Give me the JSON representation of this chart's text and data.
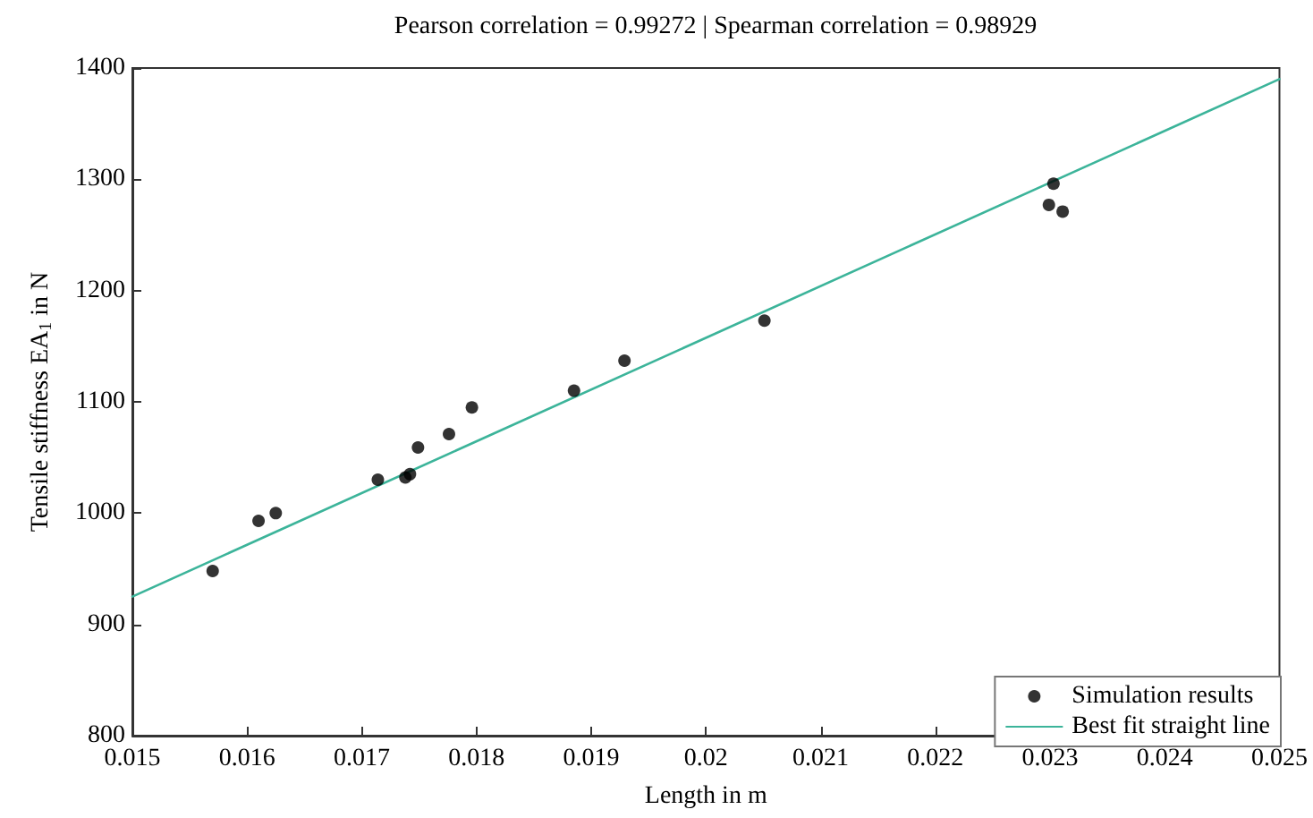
{
  "chart_data": {
    "type": "scatter",
    "title": "Pearson correlation = 0.99272 | Spearman correlation = 0.98929",
    "xlabel": "Length in m",
    "ylabel": "Tensile stiffness EA$_{1}$ in N",
    "xlim": [
      0.015,
      0.025
    ],
    "xticks": [
      0.015,
      0.016,
      0.017,
      0.018,
      0.019,
      0.02,
      0.021,
      0.022,
      0.023,
      0.024,
      0.025
    ],
    "ylim": [
      800,
      1400
    ],
    "yticks": [
      800,
      900,
      1000,
      1100,
      1200,
      1300,
      1400
    ],
    "grid": false,
    "legend": "bottom right",
    "marker": "circle",
    "series": [
      {
        "name": "Simulation results",
        "color": "#000000",
        "x": [
          0.0157,
          0.0161,
          0.01625,
          0.01714,
          0.01738,
          0.01742,
          0.01749,
          0.01776,
          0.01796,
          0.01885,
          0.01929,
          0.02051,
          0.02299,
          0.02303,
          0.02311
        ],
        "values": [
          948,
          993,
          1000,
          1030,
          1032,
          1035,
          1059,
          1071,
          1095,
          1110,
          1137,
          1173,
          1277,
          1296,
          1271
        ]
      },
      {
        "name": "Best fit straight line",
        "type": "line",
        "color": "#3cb49a",
        "marker": "none",
        "line_style": "solid",
        "x": [
          0.015,
          0.025
        ],
        "values": [
          925,
          1390
        ]
      }
    ]
  }
}
